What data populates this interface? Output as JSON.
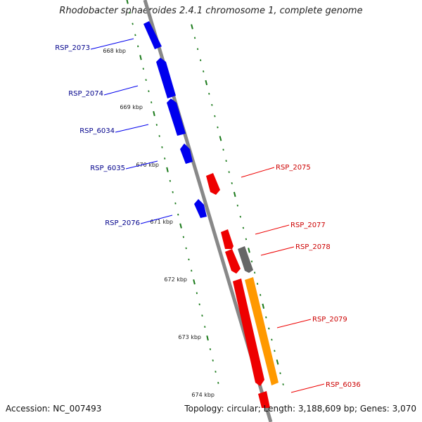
{
  "title": "Rhodobacter sphaeroides 2.4.1 chromosome 1, complete genome",
  "footer": {
    "accession": "Accession: NC_007493",
    "topology": "Topology: circular; Length: 3,188,609 bp; Genes: 3,070"
  },
  "colors": {
    "backbone": "#888888",
    "tick_green": "#1a7a1a",
    "forward_gene": "#0000ee",
    "reverse_gene": "#ee0000",
    "pseudo_gene": "#666666",
    "rna_gene": "#ff9900",
    "label_blue": "#00008b",
    "label_red": "#cc0000"
  },
  "scale_labels": [
    "668 kbp",
    "669 kbp",
    "670 kbp",
    "671 kbp",
    "672 kbp",
    "673 kbp",
    "674 kbp"
  ],
  "forward_genes": [
    {
      "name": "RSP_2073"
    },
    {
      "name": "RSP_2074"
    },
    {
      "name": "RSP_6034"
    },
    {
      "name": "RSP_6035"
    },
    {
      "name": "RSP_2076"
    }
  ],
  "reverse_genes": [
    {
      "name": "RSP_2075"
    },
    {
      "name": "RSP_2077"
    },
    {
      "name": "RSP_2078"
    },
    {
      "name": "RSP_2079"
    },
    {
      "name": "RSP_6036"
    }
  ]
}
